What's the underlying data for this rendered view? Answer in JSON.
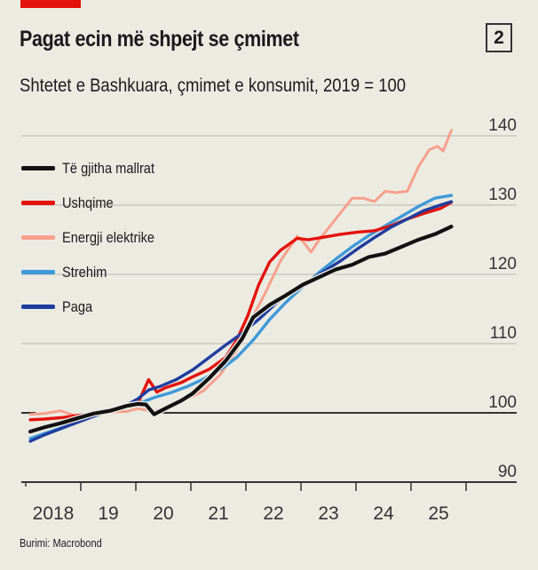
{
  "header": {
    "title": "Pagat ecin më shpejt se çmimet",
    "subtitle": "Shtetet e Bashkuara, çmimet e konsumit, 2019 = 100",
    "badge": "2"
  },
  "footer": {
    "source": "Burimi: Macrobond"
  },
  "colors": {
    "accent_bar": "#e3120b",
    "background": "#ecebe2"
  },
  "chart_data": {
    "type": "line",
    "title": "Pagat ecin më shpejt se çmimet",
    "subtitle": "Shtetet e Bashkuara, çmimet e konsumit, 2019 = 100",
    "xlabel": "",
    "ylabel": "",
    "xlim": [
      2018,
      2026.2
    ],
    "ylim": [
      90,
      142
    ],
    "y_ticks": [
      90,
      100,
      110,
      120,
      130,
      140
    ],
    "y_tick_labels": [
      "90",
      "100",
      "110",
      "120",
      "130",
      "140"
    ],
    "y_axis_side": "right",
    "x_ticks": [
      2018,
      2019,
      2020,
      2021,
      2022,
      2023,
      2024,
      2025,
      2026
    ],
    "x_tick_labels": [
      "2018",
      "19",
      "20",
      "21",
      "22",
      "23",
      "24",
      "25"
    ],
    "grid": true,
    "baseline": 100,
    "legend": "left",
    "series": [
      {
        "name": "Të gjitha mallrat",
        "color": "#111111",
        "x": [
          2018.05,
          2018.3,
          2018.6,
          2018.9,
          2019.2,
          2019.5,
          2019.8,
          2020.0,
          2020.15,
          2020.3,
          2020.5,
          2020.8,
          2021.0,
          2021.3,
          2021.6,
          2021.9,
          2022.1,
          2022.4,
          2022.7,
          2023.0,
          2023.3,
          2023.6,
          2023.9,
          2024.2,
          2024.5,
          2024.8,
          2025.1,
          2025.4,
          2025.7
        ],
        "values": [
          97.3,
          97.9,
          98.5,
          99.2,
          99.9,
          100.3,
          101.0,
          101.3,
          101.2,
          99.8,
          100.6,
          101.8,
          102.8,
          105.0,
          107.5,
          110.7,
          113.8,
          115.6,
          117.0,
          118.5,
          119.6,
          120.7,
          121.4,
          122.5,
          123.0,
          124.0,
          125.0,
          125.8,
          126.9
        ]
      },
      {
        "name": "Ushqime",
        "color": "#e3120b",
        "x": [
          2018.05,
          2018.3,
          2018.6,
          2018.9,
          2019.2,
          2019.5,
          2019.8,
          2020.0,
          2020.2,
          2020.35,
          2020.5,
          2020.8,
          2021.0,
          2021.3,
          2021.6,
          2021.8,
          2022.0,
          2022.2,
          2022.4,
          2022.6,
          2022.9,
          2023.1,
          2023.4,
          2023.7,
          2024.0,
          2024.3,
          2024.6,
          2024.9,
          2025.2,
          2025.5,
          2025.7
        ],
        "values": [
          99.0,
          99.1,
          99.3,
          99.6,
          99.9,
          100.3,
          100.8,
          101.3,
          104.8,
          103.0,
          103.6,
          104.4,
          105.2,
          106.3,
          108.0,
          110.5,
          114.0,
          118.5,
          121.8,
          123.5,
          125.2,
          125.0,
          125.4,
          125.8,
          126.1,
          126.3,
          127.0,
          128.0,
          128.8,
          129.5,
          130.4
        ]
      },
      {
        "name": "Energji elektrike",
        "color": "#f7a08c",
        "x": [
          2018.05,
          2018.3,
          2018.6,
          2018.9,
          2019.2,
          2019.5,
          2019.8,
          2020.0,
          2020.3,
          2020.6,
          2020.9,
          2021.2,
          2021.5,
          2021.8,
          2022.0,
          2022.3,
          2022.6,
          2022.9,
          2023.0,
          2023.15,
          2023.3,
          2023.6,
          2023.9,
          2024.1,
          2024.3,
          2024.5,
          2024.7,
          2024.9,
          2025.1,
          2025.3,
          2025.45,
          2025.55,
          2025.7
        ],
        "values": [
          99.8,
          99.9,
          100.3,
          99.5,
          100.0,
          100.1,
          100.2,
          100.6,
          100.2,
          101.0,
          102.0,
          103.2,
          105.5,
          109.0,
          112.5,
          117.0,
          122.0,
          125.5,
          124.8,
          123.2,
          125.0,
          128.0,
          131.0,
          131.0,
          130.5,
          132.0,
          131.8,
          132.0,
          135.5,
          138.0,
          138.5,
          137.8,
          140.8
        ]
      },
      {
        "name": "Strehim",
        "color": "#3e99d8",
        "x": [
          2018.05,
          2018.3,
          2018.6,
          2018.9,
          2019.2,
          2019.5,
          2019.8,
          2020.1,
          2020.3,
          2020.6,
          2020.9,
          2021.2,
          2021.5,
          2021.8,
          2022.1,
          2022.4,
          2022.7,
          2023.0,
          2023.3,
          2023.6,
          2023.9,
          2024.2,
          2024.5,
          2024.8,
          2025.1,
          2025.4,
          2025.7
        ],
        "values": [
          96.3,
          97.0,
          97.8,
          98.7,
          99.6,
          100.3,
          101.0,
          101.6,
          102.2,
          102.9,
          103.8,
          104.9,
          106.2,
          108.0,
          110.5,
          113.5,
          116.0,
          118.2,
          120.3,
          122.2,
          124.0,
          125.6,
          127.0,
          128.4,
          129.8,
          131.0,
          131.4
        ]
      },
      {
        "name": "Paga",
        "color": "#1f3d9e",
        "x": [
          2018.05,
          2018.3,
          2018.6,
          2018.9,
          2019.2,
          2019.5,
          2019.8,
          2020.0,
          2020.2,
          2020.4,
          2020.7,
          2021.0,
          2021.3,
          2021.6,
          2021.9,
          2022.2,
          2022.5,
          2022.8,
          2023.1,
          2023.4,
          2023.7,
          2024.0,
          2024.3,
          2024.6,
          2024.9,
          2025.2,
          2025.5,
          2025.7
        ],
        "values": [
          95.9,
          96.8,
          97.7,
          98.6,
          99.5,
          100.3,
          101.1,
          102.0,
          103.3,
          103.8,
          104.8,
          106.2,
          108.0,
          109.8,
          111.5,
          113.5,
          115.7,
          117.5,
          119.0,
          120.5,
          122.0,
          123.7,
          125.3,
          126.8,
          128.0,
          129.2,
          130.0,
          130.5
        ]
      }
    ]
  }
}
